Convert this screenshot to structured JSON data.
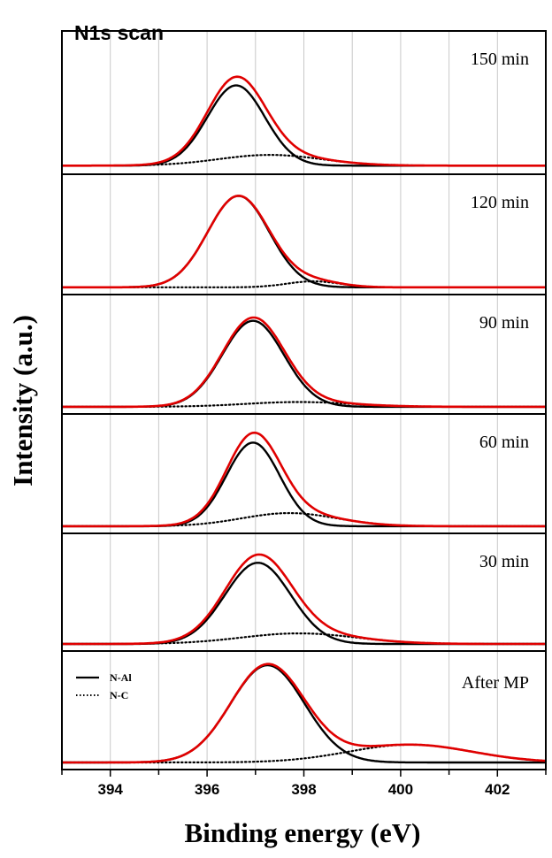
{
  "chart_data": {
    "type": "line",
    "title": "N1s scan",
    "xlabel": "Binding energy (eV)",
    "ylabel": "Intensity (a.u.)",
    "xlim": [
      393,
      403
    ],
    "x_ticks": [
      394,
      396,
      398,
      400,
      402
    ],
    "x_tick_labels": [
      "394",
      "396",
      "398",
      "400",
      "402"
    ],
    "grid": "vertical, every 1 eV",
    "legend": {
      "placement": "top-left of bottom panel",
      "entries": [
        {
          "name": "N-Al",
          "style": "solid"
        },
        {
          "name": "N-C",
          "style": "dotted"
        }
      ]
    },
    "colors": {
      "N-Al": "#000000",
      "N-C": "#000000",
      "envelope": "#e00000",
      "grid": "#c8c8c8"
    },
    "panels": [
      {
        "label": "150 min",
        "components": {
          "N-Al": {
            "center": 396.6,
            "fwhm": 1.4,
            "height": 0.56
          },
          "N-C": {
            "center": 397.3,
            "fwhm": 2.5,
            "height": 0.075
          }
        }
      },
      {
        "label": "120 min",
        "components": {
          "N-Al": {
            "center": 396.65,
            "fwhm": 1.5,
            "height": 0.76
          },
          "N-C": {
            "center": 398.2,
            "fwhm": 1.3,
            "height": 0.05
          }
        }
      },
      {
        "label": "90 min",
        "components": {
          "N-Al": {
            "center": 396.95,
            "fwhm": 1.5,
            "height": 0.72
          },
          "N-C": {
            "center": 397.9,
            "fwhm": 2.6,
            "height": 0.04
          }
        }
      },
      {
        "label": "60 min",
        "components": {
          "N-Al": {
            "center": 396.95,
            "fwhm": 1.3,
            "height": 0.7
          },
          "N-C": {
            "center": 397.7,
            "fwhm": 2.3,
            "height": 0.11
          }
        }
      },
      {
        "label": "30 min",
        "components": {
          "N-Al": {
            "center": 397.05,
            "fwhm": 1.6,
            "height": 0.69
          },
          "N-C": {
            "center": 397.9,
            "fwhm": 2.8,
            "height": 0.09
          }
        }
      },
      {
        "label": "After MP",
        "components": {
          "N-Al": {
            "center": 397.25,
            "fwhm": 1.8,
            "height": 0.82
          },
          "N-C": {
            "center": 400.2,
            "fwhm": 3.0,
            "height": 0.15
          }
        }
      }
    ]
  }
}
